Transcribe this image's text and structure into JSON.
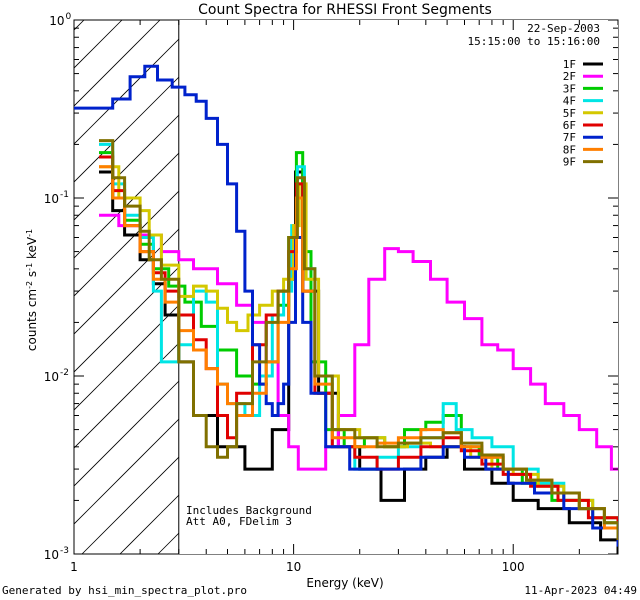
{
  "chart_data": {
    "type": "line",
    "title": "Count Spectra for RHESSI Front Segments",
    "xlabel": "Energy (keV)",
    "ylabel": "counts cm^-2 s^-1 keV^-1",
    "xscale": "log",
    "yscale": "log",
    "xlim": [
      1,
      300
    ],
    "ylim": [
      0.001,
      1.0
    ],
    "x_tick_labels": [
      "1",
      "10",
      "100"
    ],
    "y_tick_labels": [
      {
        "base": "10",
        "exp": "0",
        "value": 1.0
      },
      {
        "base": "10",
        "exp": "-1",
        "value": 0.1
      },
      {
        "base": "10",
        "exp": "-2",
        "value": 0.01
      },
      {
        "base": "10",
        "exp": "-3",
        "value": 0.001
      }
    ],
    "date": "22-Sep-2003",
    "time_range": "15:15:00 to 15:16:00",
    "annotation_lines": [
      "Includes Background",
      "Att A0, FDelim 3"
    ],
    "attenuator_shade_xmax": 3,
    "series": [
      {
        "name": "1F",
        "color": "#000000",
        "points": [
          [
            1.3,
            0.14
          ],
          [
            1.5,
            0.085
          ],
          [
            1.7,
            0.062
          ],
          [
            2.0,
            0.045
          ],
          [
            2.3,
            0.033
          ],
          [
            2.6,
            0.022
          ],
          [
            3.0,
            0.012
          ],
          [
            3.5,
            0.006
          ],
          [
            4.5,
            0.004
          ],
          [
            6,
            0.003
          ],
          [
            8,
            0.005
          ],
          [
            9.5,
            0.035
          ],
          [
            10.2,
            0.14
          ],
          [
            11,
            0.03
          ],
          [
            13,
            0.008
          ],
          [
            16,
            0.004
          ],
          [
            20,
            0.003
          ],
          [
            25,
            0.002
          ],
          [
            32,
            0.003
          ],
          [
            40,
            0.0035
          ],
          [
            50,
            0.004
          ],
          [
            60,
            0.003
          ],
          [
            80,
            0.0025
          ],
          [
            100,
            0.002
          ],
          [
            130,
            0.0018
          ],
          [
            180,
            0.0015
          ],
          [
            250,
            0.0012
          ],
          [
            300,
            0.001
          ]
        ]
      },
      {
        "name": "2F",
        "color": "#ff00ff",
        "points": [
          [
            1.3,
            0.08
          ],
          [
            1.6,
            0.07
          ],
          [
            2.0,
            0.062
          ],
          [
            2.5,
            0.05
          ],
          [
            3.0,
            0.045
          ],
          [
            3.5,
            0.04
          ],
          [
            4.5,
            0.033
          ],
          [
            5.5,
            0.025
          ],
          [
            6.5,
            0.02
          ],
          [
            7.5,
            0.012
          ],
          [
            8.5,
            0.006
          ],
          [
            9.5,
            0.004
          ],
          [
            10.5,
            0.003
          ],
          [
            12,
            0.003
          ],
          [
            14,
            0.004
          ],
          [
            16,
            0.006
          ],
          [
            19,
            0.015
          ],
          [
            22,
            0.035
          ],
          [
            26,
            0.052
          ],
          [
            30,
            0.05
          ],
          [
            35,
            0.044
          ],
          [
            42,
            0.035
          ],
          [
            50,
            0.026
          ],
          [
            60,
            0.021
          ],
          [
            72,
            0.015
          ],
          [
            85,
            0.014
          ],
          [
            100,
            0.011
          ],
          [
            120,
            0.009
          ],
          [
            140,
            0.007
          ],
          [
            170,
            0.006
          ],
          [
            200,
            0.005
          ],
          [
            240,
            0.004
          ],
          [
            280,
            0.003
          ],
          [
            300,
            0.003
          ]
        ]
      },
      {
        "name": "3F",
        "color": "#00cc00",
        "points": [
          [
            1.3,
            0.18
          ],
          [
            1.5,
            0.1
          ],
          [
            1.7,
            0.075
          ],
          [
            2.0,
            0.055
          ],
          [
            2.3,
            0.04
          ],
          [
            2.7,
            0.032
          ],
          [
            3.2,
            0.026
          ],
          [
            3.8,
            0.019
          ],
          [
            4.5,
            0.014
          ],
          [
            5.5,
            0.01
          ],
          [
            6.5,
            0.009
          ],
          [
            7.5,
            0.012
          ],
          [
            8.5,
            0.025
          ],
          [
            9.5,
            0.06
          ],
          [
            10.3,
            0.18
          ],
          [
            11,
            0.05
          ],
          [
            12,
            0.012
          ],
          [
            14,
            0.005
          ],
          [
            17,
            0.004
          ],
          [
            21,
            0.0045
          ],
          [
            26,
            0.004
          ],
          [
            32,
            0.005
          ],
          [
            40,
            0.0055
          ],
          [
            48,
            0.006
          ],
          [
            58,
            0.004
          ],
          [
            70,
            0.0035
          ],
          [
            85,
            0.003
          ],
          [
            110,
            0.0025
          ],
          [
            150,
            0.002
          ],
          [
            200,
            0.0018
          ],
          [
            260,
            0.0015
          ],
          [
            300,
            0.0012
          ]
        ]
      },
      {
        "name": "4F",
        "color": "#00e5e5",
        "points": [
          [
            1.3,
            0.2
          ],
          [
            1.5,
            0.12
          ],
          [
            1.7,
            0.08
          ],
          [
            2.0,
            0.06
          ],
          [
            2.3,
            0.03
          ],
          [
            2.5,
            0.012
          ],
          [
            3.0,
            0.015
          ],
          [
            3.5,
            0.03
          ],
          [
            4.0,
            0.026
          ],
          [
            4.5,
            0.009
          ],
          [
            5.0,
            0.007
          ],
          [
            6.0,
            0.006
          ],
          [
            7.0,
            0.01
          ],
          [
            8.0,
            0.022
          ],
          [
            9.0,
            0.03
          ],
          [
            9.8,
            0.07
          ],
          [
            10.4,
            0.15
          ],
          [
            11.2,
            0.04
          ],
          [
            12.5,
            0.01
          ],
          [
            15,
            0.004
          ],
          [
            19,
            0.003
          ],
          [
            24,
            0.0035
          ],
          [
            30,
            0.004
          ],
          [
            38,
            0.0045
          ],
          [
            48,
            0.007
          ],
          [
            55,
            0.005
          ],
          [
            65,
            0.0045
          ],
          [
            80,
            0.004
          ],
          [
            100,
            0.003
          ],
          [
            130,
            0.0025
          ],
          [
            170,
            0.002
          ],
          [
            230,
            0.0016
          ],
          [
            300,
            0.0013
          ]
        ]
      },
      {
        "name": "5F",
        "color": "#d4c800",
        "points": [
          [
            1.3,
            0.15
          ],
          [
            1.6,
            0.1
          ],
          [
            2.0,
            0.085
          ],
          [
            2.2,
            0.062
          ],
          [
            2.5,
            0.042
          ],
          [
            3.0,
            0.028
          ],
          [
            3.5,
            0.032
          ],
          [
            4.0,
            0.03
          ],
          [
            4.5,
            0.024
          ],
          [
            5.0,
            0.02
          ],
          [
            5.5,
            0.018
          ],
          [
            6.2,
            0.022
          ],
          [
            7.0,
            0.025
          ],
          [
            8.0,
            0.03
          ],
          [
            9.0,
            0.035
          ],
          [
            10,
            0.07
          ],
          [
            10.6,
            0.12
          ],
          [
            11.4,
            0.035
          ],
          [
            13,
            0.01
          ],
          [
            16,
            0.005
          ],
          [
            20,
            0.0045
          ],
          [
            26,
            0.004
          ],
          [
            33,
            0.0042
          ],
          [
            42,
            0.004
          ],
          [
            52,
            0.004
          ],
          [
            64,
            0.0035
          ],
          [
            80,
            0.003
          ],
          [
            100,
            0.0028
          ],
          [
            130,
            0.0024
          ],
          [
            170,
            0.002
          ],
          [
            230,
            0.0016
          ],
          [
            300,
            0.0013
          ]
        ]
      },
      {
        "name": "6F",
        "color": "#e00000",
        "points": [
          [
            1.3,
            0.17
          ],
          [
            1.5,
            0.11
          ],
          [
            1.7,
            0.07
          ],
          [
            2.0,
            0.05
          ],
          [
            2.3,
            0.038
          ],
          [
            2.6,
            0.03
          ],
          [
            3.0,
            0.022
          ],
          [
            3.5,
            0.016
          ],
          [
            4.0,
            0.011
          ],
          [
            4.5,
            0.006
          ],
          [
            5.0,
            0.0045
          ],
          [
            5.5,
            0.008
          ],
          [
            6.5,
            0.015
          ],
          [
            7.5,
            0.022
          ],
          [
            8.5,
            0.03
          ],
          [
            9.5,
            0.05
          ],
          [
            10.3,
            0.12
          ],
          [
            11,
            0.03
          ],
          [
            12.5,
            0.008
          ],
          [
            15,
            0.004
          ],
          [
            19,
            0.0035
          ],
          [
            24,
            0.003
          ],
          [
            30,
            0.0035
          ],
          [
            38,
            0.004
          ],
          [
            48,
            0.0045
          ],
          [
            58,
            0.0038
          ],
          [
            72,
            0.0032
          ],
          [
            90,
            0.0028
          ],
          [
            120,
            0.0024
          ],
          [
            160,
            0.002
          ],
          [
            220,
            0.0016
          ],
          [
            300,
            0.0012
          ]
        ]
      },
      {
        "name": "7F",
        "color": "#0022cc",
        "points": [
          [
            1.0,
            0.32
          ],
          [
            1.2,
            0.32
          ],
          [
            1.5,
            0.36
          ],
          [
            1.8,
            0.48
          ],
          [
            2.1,
            0.55
          ],
          [
            2.4,
            0.46
          ],
          [
            2.8,
            0.42
          ],
          [
            3.2,
            0.38
          ],
          [
            3.6,
            0.35
          ],
          [
            4.0,
            0.28
          ],
          [
            4.5,
            0.2
          ],
          [
            5.0,
            0.12
          ],
          [
            5.5,
            0.065
          ],
          [
            6.0,
            0.03
          ],
          [
            6.5,
            0.015
          ],
          [
            7.0,
            0.009
          ],
          [
            7.5,
            0.007
          ],
          [
            8.0,
            0.006
          ],
          [
            8.5,
            0.007
          ],
          [
            9.0,
            0.009
          ],
          [
            9.5,
            0.02
          ],
          [
            10.2,
            0.06
          ],
          [
            11,
            0.02
          ],
          [
            12,
            0.008
          ],
          [
            14,
            0.004
          ],
          [
            18,
            0.003
          ],
          [
            23,
            0.003
          ],
          [
            30,
            0.003
          ],
          [
            38,
            0.0035
          ],
          [
            48,
            0.004
          ],
          [
            60,
            0.0035
          ],
          [
            75,
            0.003
          ],
          [
            95,
            0.0025
          ],
          [
            125,
            0.0022
          ],
          [
            170,
            0.0018
          ],
          [
            230,
            0.0014
          ],
          [
            300,
            0.0011
          ]
        ]
      },
      {
        "name": "8F",
        "color": "#ff7f00",
        "points": [
          [
            1.3,
            0.15
          ],
          [
            1.5,
            0.1
          ],
          [
            1.7,
            0.07
          ],
          [
            2.0,
            0.05
          ],
          [
            2.3,
            0.035
          ],
          [
            2.6,
            0.026
          ],
          [
            3.0,
            0.018
          ],
          [
            3.5,
            0.014
          ],
          [
            4.0,
            0.011
          ],
          [
            4.5,
            0.009
          ],
          [
            5.0,
            0.007
          ],
          [
            5.5,
            0.006
          ],
          [
            6.5,
            0.008
          ],
          [
            7.5,
            0.012
          ],
          [
            8.5,
            0.02
          ],
          [
            9.5,
            0.04
          ],
          [
            10.3,
            0.1
          ],
          [
            11,
            0.03
          ],
          [
            12.5,
            0.009
          ],
          [
            15,
            0.0045
          ],
          [
            19,
            0.004
          ],
          [
            24,
            0.0042
          ],
          [
            30,
            0.0045
          ],
          [
            38,
            0.005
          ],
          [
            48,
            0.0048
          ],
          [
            58,
            0.004
          ],
          [
            72,
            0.0035
          ],
          [
            90,
            0.003
          ],
          [
            115,
            0.0026
          ],
          [
            150,
            0.0022
          ],
          [
            200,
            0.0018
          ],
          [
            260,
            0.0014
          ],
          [
            300,
            0.0012
          ]
        ]
      },
      {
        "name": "9F",
        "color": "#807000",
        "points": [
          [
            1.3,
            0.21
          ],
          [
            1.5,
            0.13
          ],
          [
            1.7,
            0.09
          ],
          [
            2.0,
            0.065
          ],
          [
            2.2,
            0.045
          ],
          [
            2.5,
            0.035
          ],
          [
            3.0,
            0.012
          ],
          [
            3.5,
            0.006
          ],
          [
            4.0,
            0.004
          ],
          [
            4.5,
            0.0035
          ],
          [
            5.0,
            0.004
          ],
          [
            5.5,
            0.007
          ],
          [
            6.5,
            0.012
          ],
          [
            7.5,
            0.02
          ],
          [
            8.5,
            0.03
          ],
          [
            9.5,
            0.06
          ],
          [
            10.4,
            0.13
          ],
          [
            11.2,
            0.04
          ],
          [
            12.5,
            0.01
          ],
          [
            15,
            0.005
          ],
          [
            19,
            0.0045
          ],
          [
            24,
            0.004
          ],
          [
            30,
            0.0042
          ],
          [
            38,
            0.0045
          ],
          [
            48,
            0.0048
          ],
          [
            58,
            0.0042
          ],
          [
            72,
            0.0036
          ],
          [
            90,
            0.003
          ],
          [
            115,
            0.0026
          ],
          [
            150,
            0.0022
          ],
          [
            200,
            0.0018
          ],
          [
            260,
            0.0015
          ],
          [
            300,
            0.0012
          ]
        ]
      }
    ]
  },
  "footer": {
    "generated_by": "Generated by hsi_min_spectra_plot.pro",
    "timestamp": "11-Apr-2023 04:49"
  }
}
